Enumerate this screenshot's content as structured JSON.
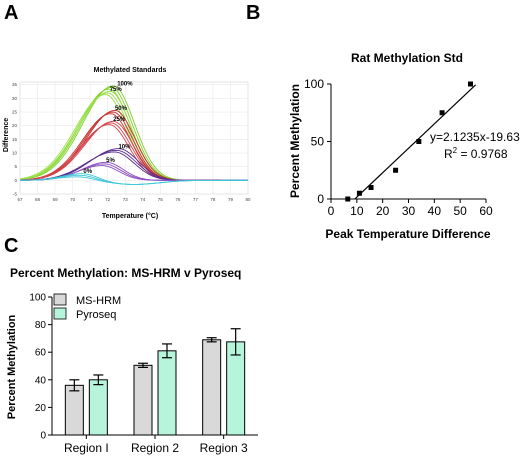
{
  "panels": {
    "a": "A",
    "b": "B",
    "c": "C"
  },
  "chart_data": [
    {
      "id": "A",
      "type": "line",
      "title": "Methylated Standards",
      "xlabel": "Temperature (°C)",
      "ylabel": "Difference",
      "xlim": [
        67,
        80
      ],
      "ylim": [
        -5,
        36
      ],
      "x_ticks": [
        "67",
        "68",
        "69",
        "70",
        "71",
        "72",
        "73",
        "74",
        "75",
        "76",
        "77",
        "78",
        "79",
        "80"
      ],
      "y_ticks": [
        "35",
        "30",
        "25",
        "20",
        "15",
        "10",
        "5",
        "0",
        "-5"
      ],
      "series": [
        {
          "name": "100%",
          "color": "#7fd02a",
          "peak_x": 72.2,
          "peak_y": 34,
          "width": 1.5
        },
        {
          "name": "75%",
          "color": "#9be04a",
          "peak_x": 72.0,
          "peak_y": 32,
          "width": 1.5
        },
        {
          "name": "50%",
          "color": "#c4302b",
          "peak_x": 72.3,
          "peak_y": 25,
          "width": 1.4
        },
        {
          "name": "25%",
          "color": "#d4434a",
          "peak_x": 72.2,
          "peak_y": 21,
          "width": 1.4
        },
        {
          "name": "10%",
          "color": "#5a2d8f",
          "peak_x": 72.5,
          "peak_y": 11,
          "width": 1.4
        },
        {
          "name": "5%",
          "color": "#8b4fc2",
          "peak_x": 71.8,
          "peak_y": 6,
          "width": 1.2
        },
        {
          "name": "0%",
          "color": "#3cc8d8",
          "peak_x": 70.5,
          "peak_y": 2,
          "width": 1.0
        }
      ]
    },
    {
      "id": "B",
      "type": "scatter",
      "title": "Rat Methylation Std",
      "xlabel": "Peak Temperature Difference",
      "ylabel": "Percent Methylation",
      "xlim": [
        0,
        60
      ],
      "ylim": [
        0,
        100
      ],
      "x_ticks": [
        0,
        10,
        20,
        30,
        40,
        50,
        60
      ],
      "y_ticks": [
        0,
        50,
        100
      ],
      "points": [
        {
          "x": 6.5,
          "y": 0
        },
        {
          "x": 11,
          "y": 5
        },
        {
          "x": 15.5,
          "y": 10
        },
        {
          "x": 25,
          "y": 25
        },
        {
          "x": 34,
          "y": 50
        },
        {
          "x": 43,
          "y": 75
        },
        {
          "x": 54,
          "y": 100
        }
      ],
      "fit": {
        "slope": 2.1235,
        "intercept": -19.63,
        "x_range": [
          9.3,
          56
        ]
      },
      "equation": "y=2.1235x-19.63",
      "r2_text": "R",
      "r2_sup": "2",
      "r2_rest": " = 0.9768"
    },
    {
      "id": "C",
      "type": "bar",
      "title": "Percent  Methylation: MS-HRM v Pyroseq",
      "ylabel": "Percent Methylation",
      "categories": [
        "Region I",
        "Region 2",
        "Region 3"
      ],
      "ylim": [
        0,
        100
      ],
      "y_ticks": [
        0,
        20,
        40,
        60,
        80,
        100
      ],
      "series": [
        {
          "name": "MS-HRM",
          "color": "#d9d9d9",
          "values": [
            36,
            50.5,
            69
          ],
          "errors": [
            4,
            1.5,
            1.5
          ]
        },
        {
          "name": "Pyroseq",
          "color": "#b6f5dc",
          "values": [
            40,
            61,
            67.5
          ],
          "errors": [
            3.5,
            5,
            9.5
          ]
        }
      ]
    }
  ]
}
